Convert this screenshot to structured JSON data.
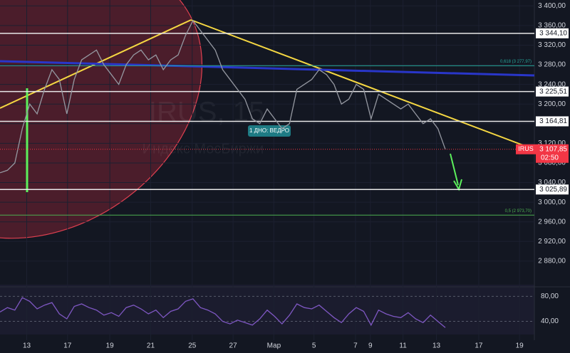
{
  "chart_data": {
    "type": "line",
    "watermark": "IRUS, 15",
    "watermark_subtitle": "Индекс МосБиржи",
    "annotation": "1 ДНО: ВЕДРО",
    "xlim": [
      0,
      72
    ],
    "xticks": [
      {
        "value": 3.6,
        "label": "13"
      },
      {
        "value": 9.1,
        "label": "17"
      },
      {
        "value": 14.8,
        "label": "19"
      },
      {
        "value": 20.3,
        "label": "21"
      },
      {
        "value": 25.9,
        "label": "25"
      },
      {
        "value": 31.4,
        "label": "27"
      },
      {
        "value": 36.9,
        "label": "Мар"
      },
      {
        "value": 42.3,
        "label": "5"
      },
      {
        "value": 47.9,
        "label": "7"
      },
      {
        "value": 49.9,
        "label": "9"
      },
      {
        "value": 54.3,
        "label": "11"
      },
      {
        "value": 58.8,
        "label": "13"
      },
      {
        "value": 64.5,
        "label": "17"
      },
      {
        "value": 70,
        "label": "19"
      }
    ],
    "ylim": [
      2832,
      3412
    ],
    "yticks": [
      {
        "value": 3400,
        "label": "3 400,00"
      },
      {
        "value": 3360,
        "label": "3 360,00"
      },
      {
        "value": 3320,
        "label": "3 320,00"
      },
      {
        "value": 3280,
        "label": "3 280,00"
      },
      {
        "value": 3240,
        "label": "3 240,00"
      },
      {
        "value": 3200,
        "label": "3 200,00"
      },
      {
        "value": 3160,
        "label": "3 160,00"
      },
      {
        "value": 3120,
        "label": "3 120,00"
      },
      {
        "value": 3080,
        "label": "3 080,00"
      },
      {
        "value": 3040,
        "label": "3 040,00"
      },
      {
        "value": 3000,
        "label": "3 000,00"
      },
      {
        "value": 2960,
        "label": "2 960,00"
      },
      {
        "value": 2920,
        "label": "2 920,00"
      },
      {
        "value": 2880,
        "label": "2 880,00"
      }
    ],
    "levels": [
      {
        "value": 3344.1,
        "label": "3 344,10"
      },
      {
        "value": 3225.51,
        "label": "3 225,51"
      },
      {
        "value": 3164.81,
        "label": "3 164,81"
      },
      {
        "value": 3025.89,
        "label": "3 025,89"
      }
    ],
    "fib_levels": [
      {
        "value": 3277.97,
        "label": "0,618 (3 277,97)",
        "color": "#26a69a"
      },
      {
        "value": 2973.7,
        "label": "0,5 (2 973,70)",
        "color": "#4caf50"
      }
    ],
    "last_price": {
      "name": "IRUS",
      "value": 3107.85,
      "label": "3 107,85",
      "time": "02:50"
    },
    "series": [
      {
        "name": "IRUS",
        "color": "#9598a1",
        "values": [
          3060,
          3065,
          3080,
          3150,
          3200,
          3180,
          3230,
          3270,
          3250,
          3180,
          3250,
          3290,
          3300,
          3310,
          3280,
          3260,
          3240,
          3280,
          3300,
          3310,
          3290,
          3300,
          3270,
          3290,
          3300,
          3340,
          3370,
          3350,
          3330,
          3310,
          3270,
          3250,
          3230,
          3210,
          3170,
          3160,
          3190,
          3170,
          3150,
          3160,
          3230,
          3240,
          3250,
          3270,
          3260,
          3240,
          3200,
          3210,
          3240,
          3230,
          3170,
          3220,
          3210,
          3200,
          3190,
          3200,
          3180,
          3160,
          3170,
          3150,
          3107.85
        ]
      },
      {
        "name": "RSI",
        "color": "#7e57c2",
        "axis": "y2",
        "values": [
          55,
          62,
          58,
          78,
          72,
          60,
          66,
          70,
          52,
          44,
          64,
          68,
          62,
          58,
          50,
          54,
          48,
          62,
          66,
          60,
          52,
          58,
          46,
          56,
          60,
          72,
          76,
          62,
          58,
          52,
          40,
          36,
          42,
          38,
          34,
          44,
          58,
          48,
          36,
          50,
          68,
          62,
          60,
          66,
          56,
          46,
          38,
          52,
          62,
          56,
          34,
          58,
          52,
          48,
          46,
          54,
          44,
          38,
          50,
          40,
          30
        ]
      }
    ],
    "y2lim": [
      19,
      93
    ],
    "y2ticks": [
      {
        "value": 80,
        "label": "80,00"
      },
      {
        "value": 40,
        "label": "40,00"
      }
    ]
  }
}
